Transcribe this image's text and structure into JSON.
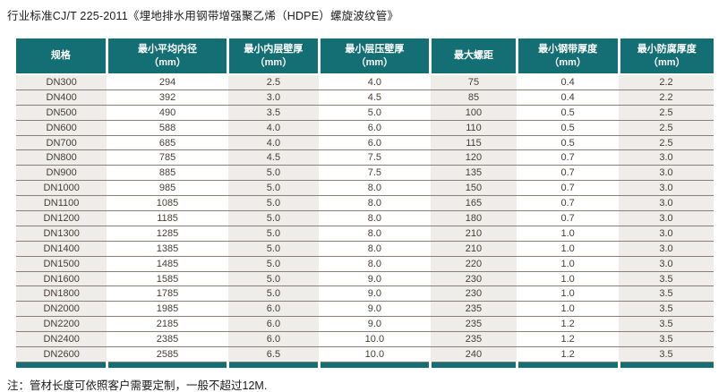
{
  "document": {
    "title": "行业标准CJ/T 225-2011《埋地排水用钢带增强聚乙烯（HDPE）螺旋波纹管》",
    "note": "注：管材长度可依照客户需要定制，一般不超过12M."
  },
  "colors": {
    "header_bg": "#136f74",
    "column_stripe": "#efedea",
    "row_line": "#8b7f75",
    "body_text": "#453d36",
    "header_text": "#ffffff"
  },
  "table": {
    "headers": [
      {
        "label": "规格",
        "unit": ""
      },
      {
        "label": "最小平均内径",
        "unit": "（mm）"
      },
      {
        "label": "最小内层壁厚",
        "unit": "（mm）"
      },
      {
        "label": "最小层压壁厚",
        "unit": "（mm）"
      },
      {
        "label": "最大螺距",
        "unit": ""
      },
      {
        "label": "最小钢带厚度",
        "unit": "（mm）"
      },
      {
        "label": "最小防腐厚度",
        "unit": "（mm）"
      }
    ],
    "rows": [
      [
        "DN300",
        "294",
        "2.5",
        "4.0",
        "75",
        "0.4",
        "2.2"
      ],
      [
        "DN400",
        "392",
        "3.0",
        "4.5",
        "85",
        "0.4",
        "2.2"
      ],
      [
        "DN500",
        "490",
        "3.5",
        "5.0",
        "100",
        "0.5",
        "2.5"
      ],
      [
        "DN600",
        "588",
        "4.0",
        "6.0",
        "110",
        "0.5",
        "2.5"
      ],
      [
        "DN700",
        "685",
        "4.0",
        "6.0",
        "115",
        "0.5",
        "2.5"
      ],
      [
        "DN800",
        "785",
        "4.5",
        "7.5",
        "120",
        "0.7",
        "3.0"
      ],
      [
        "DN900",
        "885",
        "5.0",
        "7.5",
        "135",
        "0.7",
        "3.0"
      ],
      [
        "DN1000",
        "985",
        "5.0",
        "8.0",
        "150",
        "0.7",
        "3.0"
      ],
      [
        "DN1100",
        "1085",
        "5.0",
        "8.0",
        "165",
        "0.7",
        "3.0"
      ],
      [
        "DN1200",
        "1185",
        "5.0",
        "8.0",
        "180",
        "0.7",
        "3.0"
      ],
      [
        "DN1300",
        "1285",
        "5.0",
        "8.0",
        "210",
        "1.0",
        "3.0"
      ],
      [
        "DN1400",
        "1385",
        "5.0",
        "8.0",
        "210",
        "1.0",
        "3.0"
      ],
      [
        "DN1500",
        "1485",
        "5.0",
        "8.0",
        "220",
        "1.0",
        "3.0"
      ],
      [
        "DN1600",
        "1585",
        "5.0",
        "9.0",
        "230",
        "1.0",
        "3.5"
      ],
      [
        "DN1800",
        "1785",
        "5.0",
        "9.0",
        "230",
        "1.0",
        "3.5"
      ],
      [
        "DN2000",
        "1985",
        "6.0",
        "9.0",
        "235",
        "1.0",
        "3.5"
      ],
      [
        "DN2200",
        "2185",
        "6.0",
        "9.0",
        "235",
        "1.2",
        "3.5"
      ],
      [
        "DN2400",
        "2385",
        "6.0",
        "10.0",
        "235",
        "1.2",
        "3.5"
      ],
      [
        "DN2600",
        "2585",
        "6.5",
        "10.0",
        "240",
        "1.2",
        "3.5"
      ]
    ]
  }
}
